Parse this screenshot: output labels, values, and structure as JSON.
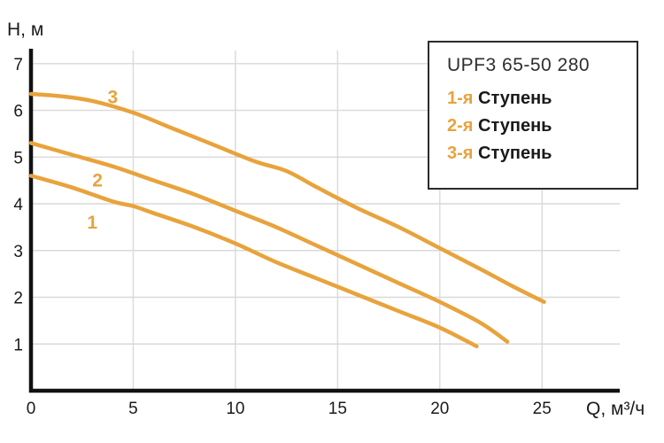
{
  "axes": {
    "y_label": "H, м",
    "x_label": "Q, м³/ч"
  },
  "legend": {
    "title": "UPF3 65-50 280",
    "items": [
      {
        "prefix": "1-я",
        "label": "Ступень"
      },
      {
        "prefix": "2-я",
        "label": "Ступень"
      },
      {
        "prefix": "3-я",
        "label": "Ступень"
      }
    ]
  },
  "colors": {
    "curve": "#E8A33C",
    "grid": "#D9D9D9",
    "axis": "#111111",
    "text": "#1a1a1a"
  },
  "chart_data": {
    "type": "line",
    "title": "UPF3 65-50 280",
    "xlabel": "Q, м³/ч",
    "ylabel": "H, м",
    "xlim": [
      0,
      28.8
    ],
    "ylim": [
      0,
      7.28
    ],
    "x_ticks": [
      0,
      5,
      10,
      15,
      20,
      25
    ],
    "y_ticks": [
      1,
      2,
      3,
      4,
      5,
      6,
      7
    ],
    "grid": true,
    "legend_position": "top-right",
    "series": [
      {
        "name": "1-я Ступень",
        "label": "1",
        "label_pos": [
          3.0,
          3.6
        ],
        "points": [
          [
            0,
            4.6
          ],
          [
            2,
            4.35
          ],
          [
            4,
            4.05
          ],
          [
            5,
            3.95
          ],
          [
            6,
            3.8
          ],
          [
            8,
            3.5
          ],
          [
            10,
            3.15
          ],
          [
            12,
            2.75
          ],
          [
            14,
            2.4
          ],
          [
            16,
            2.05
          ],
          [
            18,
            1.7
          ],
          [
            20,
            1.35
          ],
          [
            21.8,
            0.95
          ]
        ]
      },
      {
        "name": "2-я Ступень",
        "label": "2",
        "label_pos": [
          3.25,
          4.5
        ],
        "points": [
          [
            0,
            5.3
          ],
          [
            2,
            5.05
          ],
          [
            4,
            4.8
          ],
          [
            6,
            4.5
          ],
          [
            8,
            4.2
          ],
          [
            10,
            3.85
          ],
          [
            12,
            3.5
          ],
          [
            14,
            3.1
          ],
          [
            16,
            2.7
          ],
          [
            18,
            2.3
          ],
          [
            20,
            1.9
          ],
          [
            22,
            1.45
          ],
          [
            23.3,
            1.05
          ]
        ]
      },
      {
        "name": "3-я Ступень",
        "label": "3",
        "label_pos": [
          4.0,
          6.28
        ],
        "points": [
          [
            0,
            6.35
          ],
          [
            1.5,
            6.3
          ],
          [
            3,
            6.2
          ],
          [
            5,
            5.95
          ],
          [
            7,
            5.6
          ],
          [
            9,
            5.25
          ],
          [
            11,
            4.9
          ],
          [
            12.5,
            4.7
          ],
          [
            14,
            4.35
          ],
          [
            16,
            3.9
          ],
          [
            18,
            3.5
          ],
          [
            20,
            3.05
          ],
          [
            22,
            2.6
          ],
          [
            23.5,
            2.25
          ],
          [
            25.1,
            1.9
          ]
        ]
      }
    ]
  }
}
